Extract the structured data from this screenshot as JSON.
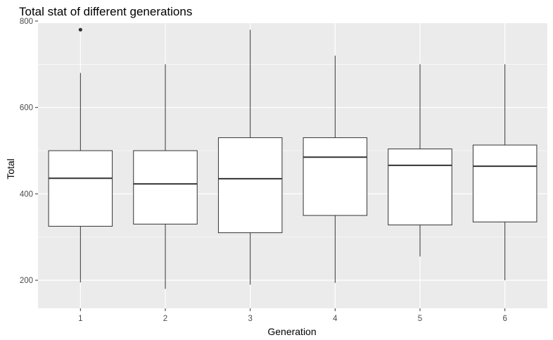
{
  "chart_data": {
    "type": "boxplot",
    "title": "Total stat of different generations",
    "xlabel": "Generation",
    "ylabel": "Total",
    "categories": [
      "1",
      "2",
      "3",
      "4",
      "5",
      "6"
    ],
    "ylim": [
      135,
      795
    ],
    "yticks": [
      200,
      400,
      600,
      800
    ],
    "grid": true,
    "legend": "none",
    "boxes": [
      {
        "category": "1",
        "whisker_low": 195,
        "q1": 325,
        "median": 436,
        "q3": 500,
        "whisker_high": 680,
        "outliers": [
          780
        ]
      },
      {
        "category": "2",
        "whisker_low": 180,
        "q1": 330,
        "median": 423,
        "q3": 500,
        "whisker_high": 700,
        "outliers": []
      },
      {
        "category": "3",
        "whisker_low": 190,
        "q1": 310,
        "median": 435,
        "q3": 530,
        "whisker_high": 780,
        "outliers": []
      },
      {
        "category": "4",
        "whisker_low": 194,
        "q1": 350,
        "median": 485,
        "q3": 530,
        "whisker_high": 720,
        "outliers": []
      },
      {
        "category": "5",
        "whisker_low": 255,
        "q1": 328,
        "median": 466,
        "q3": 504,
        "whisker_high": 700,
        "outliers": []
      },
      {
        "category": "6",
        "whisker_low": 200,
        "q1": 335,
        "median": 464,
        "q3": 513,
        "whisker_high": 700,
        "outliers": []
      }
    ],
    "colors": {
      "panel": "#ebebeb",
      "grid_major": "#ffffff",
      "box_fill": "#ffffff",
      "box_stroke": "#333333",
      "outlier": "#333333",
      "tick_label": "#4d4d4d"
    }
  }
}
